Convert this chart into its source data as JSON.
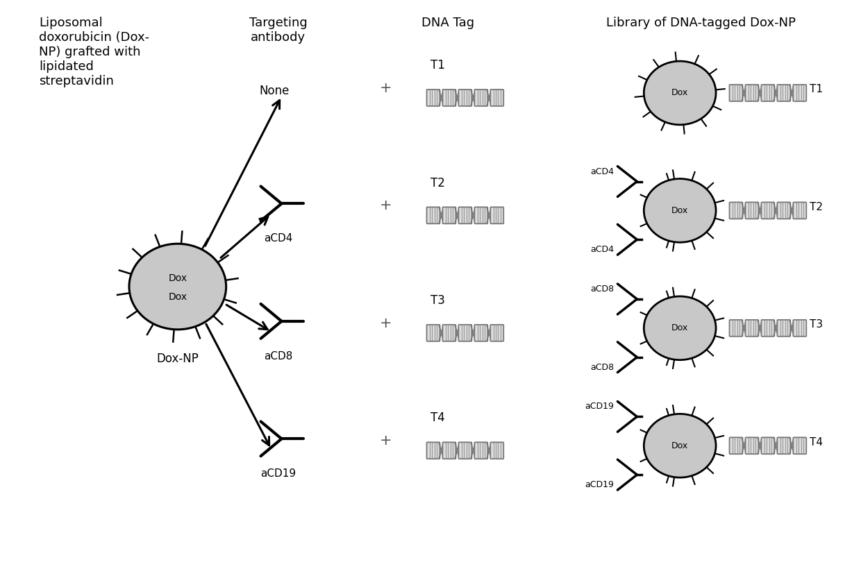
{
  "bg_color": "#ffffff",
  "text_color": "#000000",
  "gray_color": "#c8c8c8",
  "col1_header": "Liposomal\ndoxorubicin (Dox-\nNP) grafted with\nlipidated\nstreptavidin",
  "col2_header": "Targeting\nantibody",
  "col3_header": "DNA Tag",
  "col4_header": "Library of DNA-tagged Dox-NP",
  "rows": [
    {
      "antibody": "None",
      "tag": "T1"
    },
    {
      "antibody": "aCD4",
      "tag": "T2"
    },
    {
      "antibody": "aCD8",
      "tag": "T3"
    },
    {
      "antibody": "aCD19",
      "tag": "T4"
    }
  ]
}
